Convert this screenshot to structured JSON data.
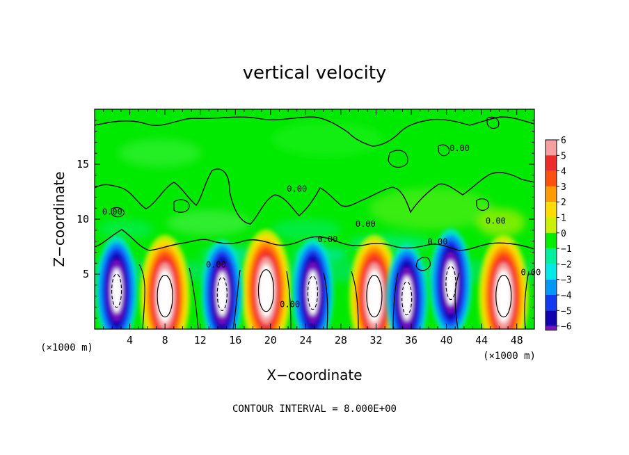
{
  "chart_data": {
    "type": "heatmap",
    "title": "vertical velocity",
    "xlabel": "X−coordinate",
    "ylabel": "Z−coordinate",
    "x_unit": "(×1000 m)",
    "y_unit": "(×1000 m)",
    "xlim": [
      0,
      50
    ],
    "ylim": [
      0,
      20
    ],
    "x_ticks": [
      4,
      8,
      12,
      16,
      20,
      24,
      28,
      32,
      36,
      40,
      44,
      48
    ],
    "y_ticks": [
      5,
      10,
      15
    ],
    "colorbar": {
      "levels": [
        6,
        5,
        4,
        3,
        2,
        1,
        0,
        -1,
        -2,
        -3,
        -4,
        -5,
        -6
      ],
      "labels": [
        "6",
        "5",
        "4",
        "3",
        "2",
        "1",
        "0",
        "−1",
        "−2",
        "−3",
        "−4",
        "−5",
        "−6"
      ],
      "colors": [
        "#f4a0a0",
        "#ee2a2a",
        "#ff5010",
        "#ff9a00",
        "#ffdc00",
        "#ccf000",
        "#00ee00",
        "#00f0a0",
        "#00e8e8",
        "#0098f8",
        "#1238f0",
        "#1000b0",
        "#7a10c0"
      ]
    },
    "updrafts": [
      {
        "x": 8,
        "z": 3.0
      },
      {
        "x": 19.5,
        "z": 3.5
      },
      {
        "x": 31.8,
        "z": 3.0
      },
      {
        "x": 46.5,
        "z": 3.0
      }
    ],
    "downdrafts": [
      {
        "x": 2.5,
        "z": 3.5
      },
      {
        "x": 14.5,
        "z": 3.2
      },
      {
        "x": 24.8,
        "z": 3.3
      },
      {
        "x": 35.5,
        "z": 2.8
      },
      {
        "x": 40.5,
        "z": 4.2
      }
    ],
    "contour_labels": [
      {
        "text": "0.00",
        "x": 26.5,
        "z": 7.9
      },
      {
        "text": "0.00",
        "x": 23,
        "z": 12.5
      },
      {
        "text": "0.00",
        "x": 30.8,
        "z": 9.3
      },
      {
        "text": "0.00",
        "x": 39,
        "z": 7.7
      },
      {
        "text": "0.00",
        "x": 41.5,
        "z": 16.2
      },
      {
        "text": "0.00",
        "x": 2,
        "z": 10.4
      },
      {
        "text": "0.00",
        "x": 13.8,
        "z": 5.6
      },
      {
        "text": "0.00",
        "x": 22.2,
        "z": 2.0
      },
      {
        "text": "0.00",
        "x": 45.6,
        "z": 9.6
      },
      {
        "text": "0.00",
        "x": 49.6,
        "z": 4.9
      }
    ],
    "footnote": "CONTOUR INTERVAL = 8.000E+00"
  }
}
